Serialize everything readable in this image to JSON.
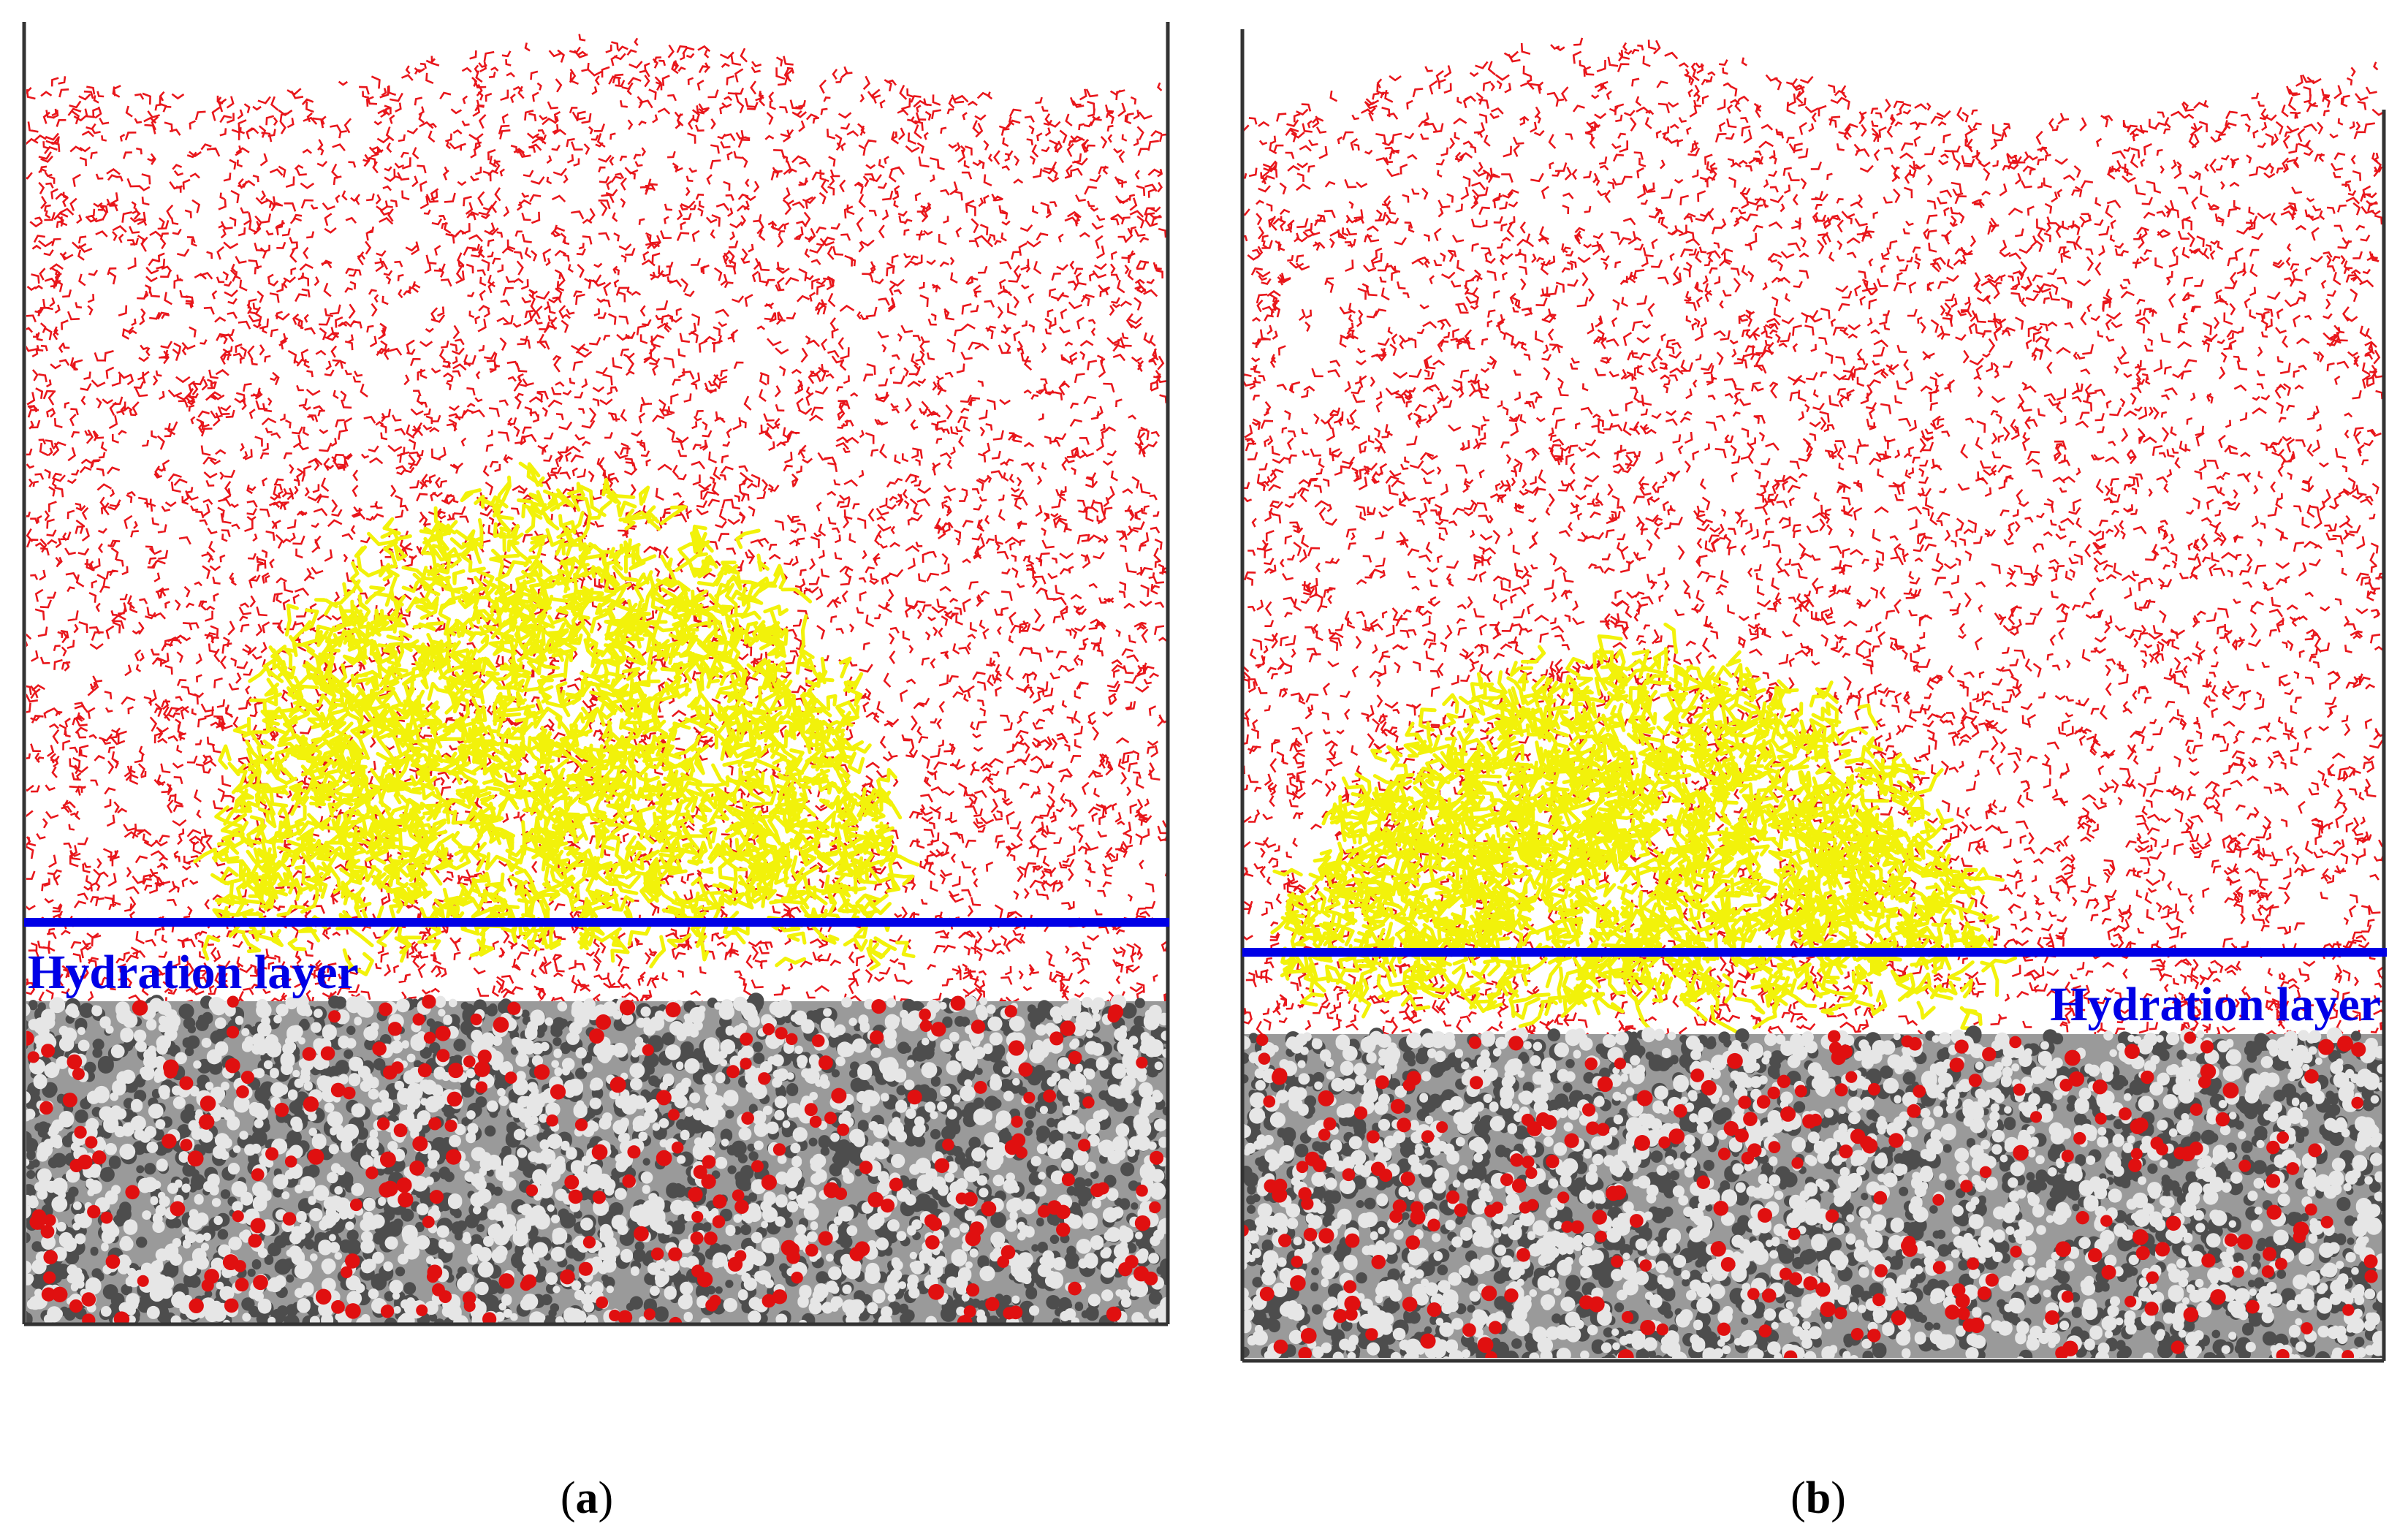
{
  "figure": {
    "panels": [
      {
        "id": "a",
        "caption": "(a)",
        "caption_letter": "a",
        "layer_label": "Hydration layer",
        "label_placement": "left, below line"
      },
      {
        "id": "b",
        "caption": "(b)",
        "caption_letter": "b",
        "layer_label": "Hydration layer",
        "label_placement": "right, below line"
      }
    ],
    "colors": {
      "water": "#e8161b",
      "oil": "#f2f20a",
      "substrate_dark": "#4d4d4d",
      "substrate_light": "#e6e6e6",
      "substrate_oxygen": "#e01010",
      "layer_line": "#0000e6",
      "frame": "#333333"
    },
    "legend_note": "red: water, yellow: oil droplet, grey/white/red spheres: substrate"
  }
}
